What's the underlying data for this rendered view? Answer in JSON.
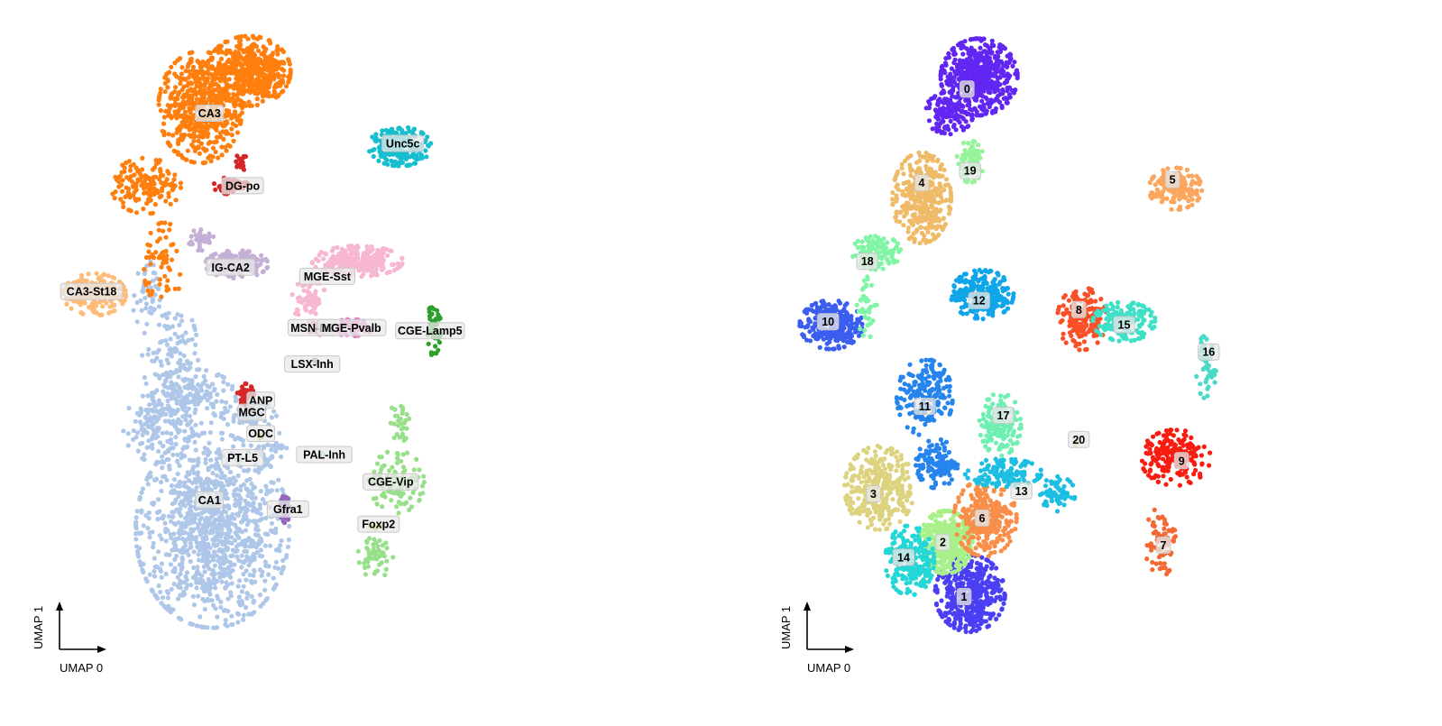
{
  "panels": [
    {
      "xlabel": "UMAP 0",
      "ylabel": "UMAP 1",
      "clusters": [
        {
          "name": "CA1",
          "color": "#aec7e8",
          "center": [
            2.75,
            2.1
          ],
          "blobs": [
            [
              2.8,
              1.6,
              1.1,
              1.4,
              1100
            ],
            [
              1.9,
              3.3,
              0.5,
              0.5,
              150
            ],
            [
              2.5,
              3.8,
              0.6,
              0.4,
              140
            ],
            [
              2.1,
              4.5,
              0.4,
              0.8,
              120
            ],
            [
              1.7,
              5.5,
              0.2,
              0.5,
              40
            ],
            [
              3.4,
              3.5,
              0.4,
              0.2,
              60
            ],
            [
              3.8,
              3.0,
              0.2,
              0.2,
              30
            ]
          ]
        },
        {
          "name": "CA3",
          "color": "#ff7f0e",
          "center": [
            2.75,
            8.5
          ],
          "blobs": [
            [
              2.6,
              8.6,
              0.6,
              0.8,
              500
            ],
            [
              3.4,
              9.2,
              0.6,
              0.5,
              500
            ],
            [
              1.7,
              7.3,
              0.5,
              0.4,
              150
            ],
            [
              2.0,
              6.0,
              0.3,
              0.6,
              60
            ]
          ]
        },
        {
          "name": "DG-po",
          "color": "#d62728",
          "center": [
            3.3,
            7.3
          ],
          "blobs": [
            [
              3.1,
              7.3,
              0.25,
              0.12,
              60
            ],
            [
              3.25,
              7.7,
              0.1,
              0.15,
              15
            ]
          ]
        },
        {
          "name": "IG-CA2",
          "color": "#c5b0d5",
          "center": [
            3.1,
            5.95
          ],
          "blobs": [
            [
              3.2,
              6.0,
              0.45,
              0.2,
              200
            ],
            [
              2.6,
              6.4,
              0.2,
              0.15,
              40
            ]
          ]
        },
        {
          "name": "CA3-St18",
          "color": "#ffbb78",
          "center": [
            0.8,
            5.55
          ],
          "blobs": [
            [
              0.85,
              5.5,
              0.45,
              0.3,
              200
            ]
          ]
        },
        {
          "name": "MGE-Sst",
          "color": "#f7b6d2",
          "center": [
            4.7,
            5.8
          ],
          "blobs": [
            [
              5.2,
              6.05,
              0.65,
              0.22,
              250
            ],
            [
              4.4,
              5.4,
              0.25,
              0.3,
              60
            ]
          ]
        },
        {
          "name": "MSN-D2",
          "color": "#e377c2",
          "center": [
            4.45,
            4.95
          ],
          "blobs": [
            [
              4.55,
              4.95,
              0.15,
              0.1,
              25
            ]
          ]
        },
        {
          "name": "MGE-Pvalb",
          "color": "#e377c2",
          "center": [
            5.1,
            4.95
          ],
          "blobs": [
            [
              5.1,
              4.95,
              0.3,
              0.12,
              70
            ]
          ]
        },
        {
          "name": "LSX-Inh",
          "color": "#7f7f7f",
          "center": [
            4.45,
            4.35
          ],
          "blobs": [
            [
              4.5,
              4.4,
              0.05,
              0.05,
              4
            ]
          ]
        },
        {
          "name": "Unc5c",
          "color": "#17becf",
          "center": [
            5.95,
            8.0
          ],
          "blobs": [
            [
              5.9,
              7.95,
              0.45,
              0.28,
              200
            ]
          ]
        },
        {
          "name": "CGE-Lamp5",
          "color": "#2ca02c",
          "center": [
            6.4,
            4.9
          ],
          "blobs": [
            [
              6.45,
              4.9,
              0.12,
              0.35,
              50
            ]
          ]
        },
        {
          "name": "ANP",
          "color": "#d62728",
          "center": [
            3.6,
            3.75
          ],
          "blobs": [
            [
              3.35,
              3.85,
              0.12,
              0.15,
              50
            ]
          ]
        },
        {
          "name": "MGC",
          "color": "#8c564b",
          "center": [
            3.45,
            3.55
          ],
          "blobs": [
            [
              3.45,
              3.6,
              0.05,
              0.05,
              8
            ]
          ]
        },
        {
          "name": "ODC",
          "color": "#bcbd22",
          "center": [
            3.6,
            3.2
          ],
          "blobs": [
            [
              3.6,
              3.15,
              0.05,
              0.05,
              5
            ]
          ]
        },
        {
          "name": "PT-L5",
          "color": "#98df8a",
          "center": [
            3.3,
            2.8
          ],
          "blobs": [
            [
              3.25,
              2.75,
              0.04,
              0.04,
              4
            ]
          ]
        },
        {
          "name": "PAL-Inh",
          "color": "#9edae5",
          "center": [
            4.65,
            2.85
          ],
          "blobs": [
            [
              4.6,
              2.85,
              0.05,
              0.04,
              6
            ]
          ]
        },
        {
          "name": "CGE-Vip",
          "color": "#98df8a",
          "center": [
            5.75,
            2.4
          ],
          "blobs": [
            [
              5.85,
              2.4,
              0.4,
              0.45,
              120
            ],
            [
              5.5,
              1.2,
              0.25,
              0.35,
              50
            ],
            [
              5.9,
              3.4,
              0.15,
              0.3,
              30
            ]
          ]
        },
        {
          "name": "Foxp2",
          "color": "#bcbd22",
          "center": [
            5.55,
            1.7
          ],
          "blobs": [
            [
              5.5,
              1.65,
              0.15,
              0.05,
              10
            ]
          ]
        },
        {
          "name": "Gfra1",
          "color": "#9467bd",
          "center": [
            4.05,
            1.95
          ],
          "blobs": [
            [
              4.0,
              1.95,
              0.07,
              0.2,
              50
            ]
          ]
        }
      ]
    },
    {
      "xlabel": "UMAP 0",
      "ylabel": "UMAP 1",
      "clusters": [
        {
          "name": "0",
          "color": "#6226f2",
          "center": [
            2.9,
            8.9
          ],
          "blobs": [
            [
              3.1,
              9.1,
              0.55,
              0.55,
              550
            ],
            [
              2.6,
              8.5,
              0.35,
              0.3,
              130
            ]
          ]
        },
        {
          "name": "1",
          "color": "#4b3ff3",
          "center": [
            2.85,
            0.5
          ],
          "blobs": [
            [
              2.95,
              0.55,
              0.5,
              0.55,
              450
            ]
          ]
        },
        {
          "name": "2",
          "color": "#a8f08a",
          "center": [
            2.5,
            1.4
          ],
          "blobs": [
            [
              2.55,
              1.4,
              0.38,
              0.45,
              450
            ]
          ]
        },
        {
          "name": "3",
          "color": "#ddd37e",
          "center": [
            1.35,
            2.2
          ],
          "blobs": [
            [
              1.45,
              2.3,
              0.5,
              0.6,
              330
            ]
          ]
        },
        {
          "name": "4",
          "color": "#efbb68",
          "center": [
            2.15,
            7.35
          ],
          "blobs": [
            [
              2.15,
              7.1,
              0.42,
              0.65,
              350
            ]
          ]
        },
        {
          "name": "5",
          "color": "#fca55d",
          "center": [
            6.3,
            7.4
          ],
          "blobs": [
            [
              6.35,
              7.25,
              0.38,
              0.3,
              170
            ]
          ]
        },
        {
          "name": "6",
          "color": "#f98e49",
          "center": [
            3.15,
            1.8
          ],
          "blobs": [
            [
              3.2,
              1.8,
              0.45,
              0.55,
              280
            ]
          ]
        },
        {
          "name": "7",
          "color": "#f56934",
          "center": [
            6.15,
            1.35
          ],
          "blobs": [
            [
              6.1,
              1.4,
              0.22,
              0.5,
              80
            ]
          ]
        },
        {
          "name": "8",
          "color": "#fb5027",
          "center": [
            4.75,
            5.25
          ],
          "blobs": [
            [
              4.8,
              5.1,
              0.35,
              0.45,
              180
            ]
          ]
        },
        {
          "name": "9",
          "color": "#f81d10",
          "center": [
            6.45,
            2.75
          ],
          "blobs": [
            [
              6.35,
              2.8,
              0.5,
              0.4,
              200
            ]
          ]
        },
        {
          "name": "10",
          "color": "#3b5ef0",
          "center": [
            0.6,
            5.05
          ],
          "blobs": [
            [
              0.65,
              5.0,
              0.45,
              0.35,
              280
            ]
          ]
        },
        {
          "name": "11",
          "color": "#2684ee",
          "center": [
            2.2,
            3.65
          ],
          "blobs": [
            [
              2.2,
              3.8,
              0.4,
              0.55,
              200
            ],
            [
              2.4,
              2.7,
              0.3,
              0.35,
              120
            ]
          ]
        },
        {
          "name": "12",
          "color": "#0fa6e9",
          "center": [
            3.1,
            5.4
          ],
          "blobs": [
            [
              3.15,
              5.5,
              0.45,
              0.35,
              260
            ]
          ]
        },
        {
          "name": "13",
          "color": "#1cbee2",
          "center": [
            3.8,
            2.25
          ],
          "blobs": [
            [
              3.5,
              2.55,
              0.55,
              0.2,
              130
            ],
            [
              4.4,
              2.2,
              0.25,
              0.25,
              60
            ]
          ]
        },
        {
          "name": "14",
          "color": "#24d6d6",
          "center": [
            1.85,
            1.15
          ],
          "blobs": [
            [
              1.95,
              1.1,
              0.35,
              0.5,
              220
            ]
          ]
        },
        {
          "name": "15",
          "color": "#3ee0c6",
          "center": [
            5.5,
            5.0
          ],
          "blobs": [
            [
              5.5,
              5.05,
              0.45,
              0.28,
              170
            ]
          ]
        },
        {
          "name": "16",
          "color": "#4bd9c8",
          "center": [
            6.9,
            4.55
          ],
          "blobs": [
            [
              6.85,
              4.3,
              0.15,
              0.45,
              50
            ]
          ]
        },
        {
          "name": "17",
          "color": "#6ff0b2",
          "center": [
            3.5,
            3.5
          ],
          "blobs": [
            [
              3.45,
              3.35,
              0.3,
              0.45,
              150
            ]
          ]
        },
        {
          "name": "18",
          "color": "#80f5a5",
          "center": [
            1.25,
            6.05
          ],
          "blobs": [
            [
              1.4,
              6.2,
              0.35,
              0.25,
              120
            ],
            [
              1.25,
              5.3,
              0.15,
              0.45,
              40
            ]
          ]
        },
        {
          "name": "19",
          "color": "#95f39a",
          "center": [
            2.95,
            7.55
          ],
          "blobs": [
            [
              2.95,
              7.7,
              0.2,
              0.3,
              80
            ]
          ]
        },
        {
          "name": "20",
          "color": "#c6e28c",
          "center": [
            4.75,
            3.1
          ],
          "blobs": [
            [
              4.7,
              3.05,
              0.04,
              0.04,
              5
            ]
          ]
        }
      ]
    }
  ]
}
